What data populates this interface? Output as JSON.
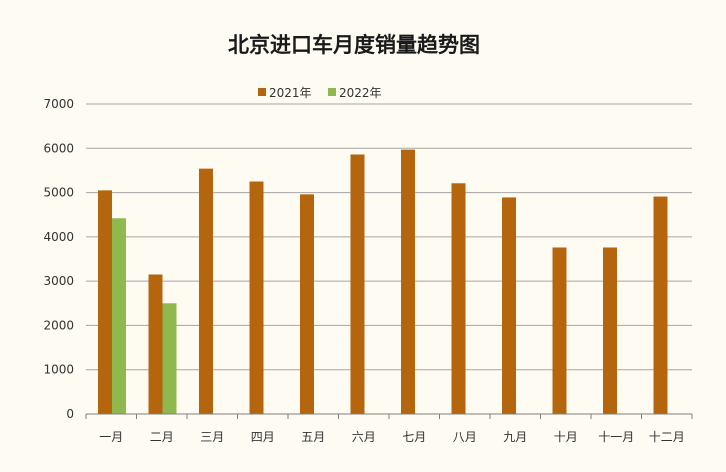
{
  "chart_data": {
    "type": "bar",
    "title": "北京进口车月度销量趋势图",
    "xlabel": "",
    "ylabel": "",
    "categories": [
      "一月",
      "二月",
      "三月",
      "四月",
      "五月",
      "六月",
      "七月",
      "八月",
      "九月",
      "十月",
      "十一月",
      "十二月"
    ],
    "series": [
      {
        "name": "2021年",
        "color": "#b5650d",
        "values": [
          5050,
          3150,
          5540,
          5250,
          4960,
          5860,
          5970,
          5210,
          4890,
          3760,
          3760,
          4910
        ]
      },
      {
        "name": "2022年",
        "color": "#8fb84e",
        "values": [
          4420,
          2500,
          null,
          null,
          null,
          null,
          null,
          null,
          null,
          null,
          null,
          null
        ]
      }
    ],
    "ylim": [
      0,
      7000
    ],
    "yticks": [
      "0",
      "1000",
      "2000",
      "3000",
      "4000",
      "5000",
      "6000",
      "7000"
    ],
    "grid": true,
    "legend_position": "top-center"
  },
  "colors": {
    "background": "#fefbf2",
    "gridline": "#a6a6a6"
  }
}
